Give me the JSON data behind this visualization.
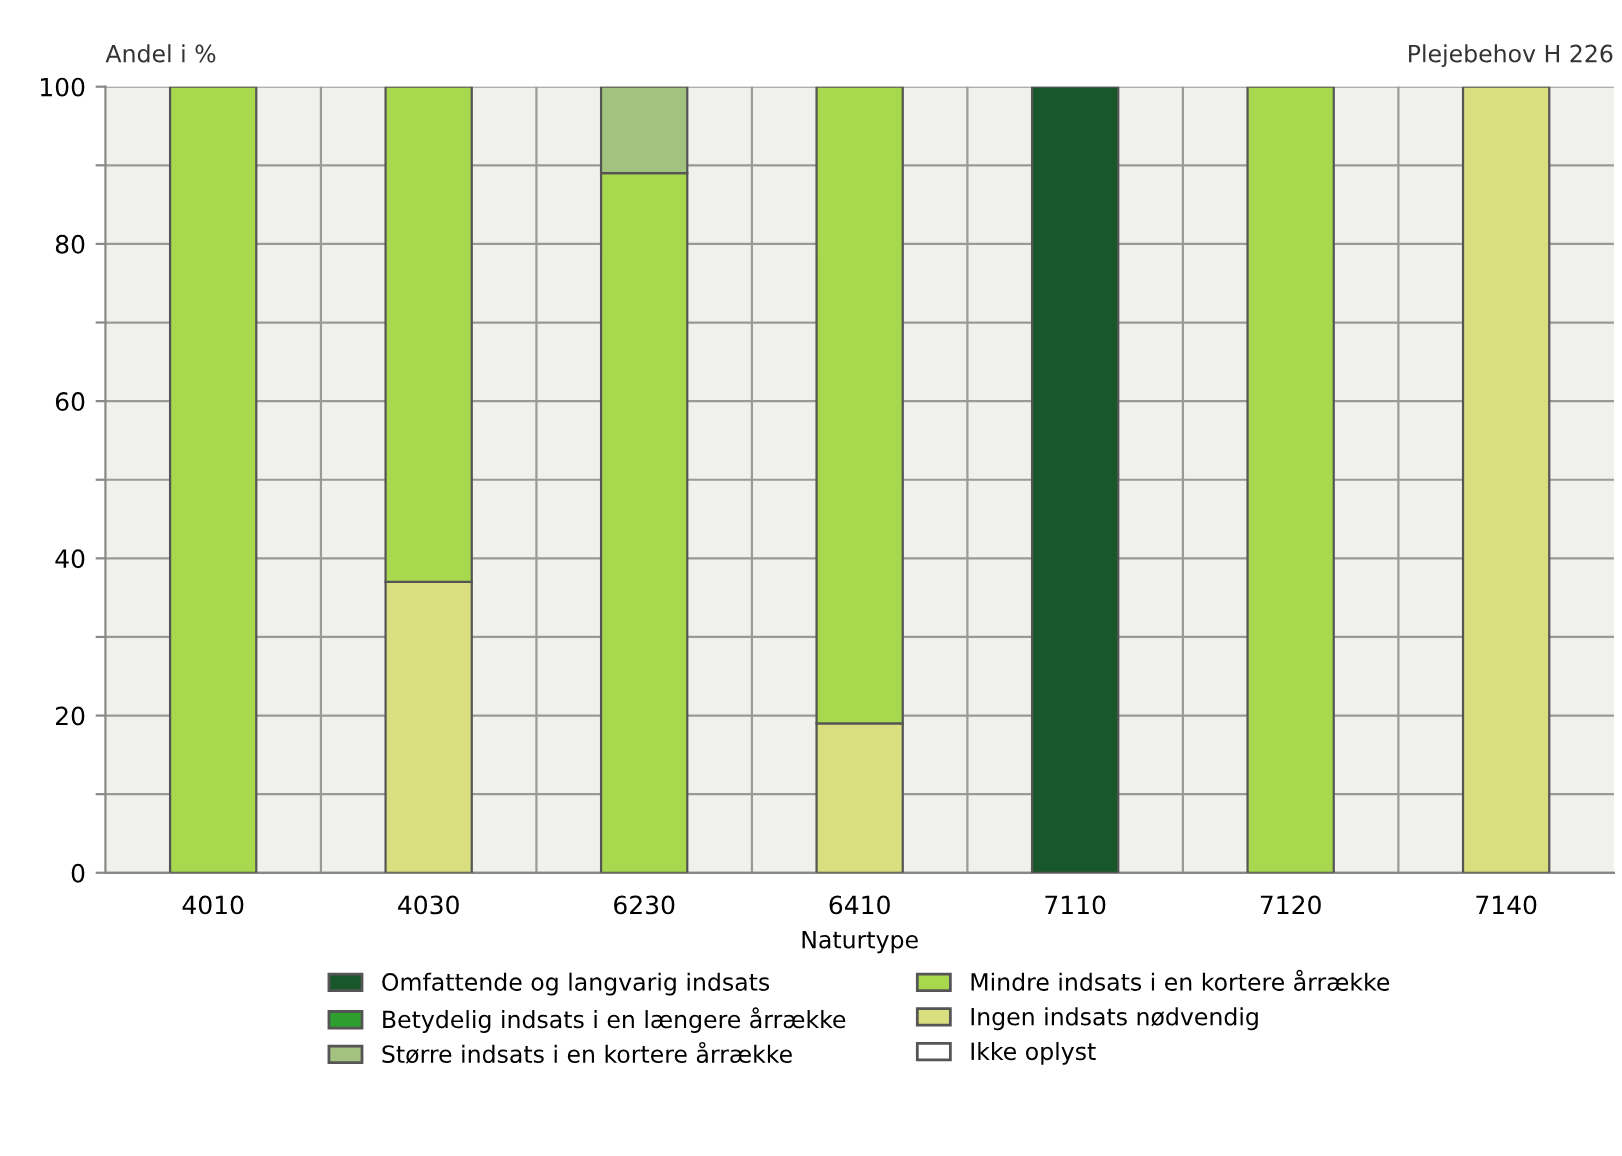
{
  "chart_data": {
    "type": "bar",
    "stacked": true,
    "title": "Plejebehov H 226",
    "ylabel": "Andel i %",
    "xlabel": "Naturtype",
    "categories": [
      "4010",
      "4030",
      "6230",
      "6410",
      "7110",
      "7120",
      "7140"
    ],
    "series": [
      {
        "name": "Ikke oplyst",
        "color": "#ffffff",
        "values": [
          0,
          0,
          0,
          0,
          0,
          0,
          0
        ]
      },
      {
        "name": "Ingen indsats nødvendig",
        "color": "#d9df7e",
        "values": [
          0,
          37,
          0,
          19,
          0,
          0,
          100
        ]
      },
      {
        "name": "Mindre indsats i en kortere årrække",
        "color": "#a8d84e",
        "values": [
          100,
          63,
          89,
          81,
          0,
          100,
          0
        ]
      },
      {
        "name": "Større indsats i en kortere årrække",
        "color": "#a3c27f",
        "values": [
          0,
          0,
          11,
          0,
          0,
          0,
          0
        ]
      },
      {
        "name": "Betydelig indsats i en længere årrække",
        "color": "#2e9e2e",
        "values": [
          0,
          0,
          0,
          0,
          0,
          0,
          0
        ]
      },
      {
        "name": "Omfattende og langvarig indsats",
        "color": "#18572a",
        "values": [
          0,
          0,
          0,
          0,
          100,
          0,
          0
        ]
      }
    ],
    "ylim": [
      0,
      100
    ],
    "yticks": [
      0,
      {
        "value": 10,
        "label": null
      },
      20,
      {
        "value": 30,
        "label": null
      },
      40,
      {
        "value": 50,
        "label": null
      },
      60,
      {
        "value": 70,
        "label": null
      },
      80,
      {
        "value": 90,
        "label": null
      },
      100
    ],
    "grid": true,
    "legend": "bottom"
  }
}
